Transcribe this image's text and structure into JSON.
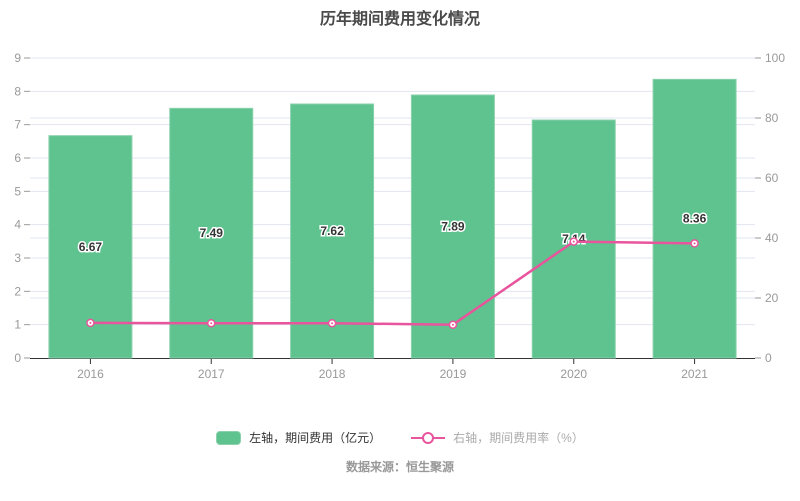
{
  "title": "历年期间费用变化情况",
  "source": "数据来源：恒生聚源",
  "legend": [
    {
      "label": "左轴，期间费用（亿元）",
      "marker": "bar-swatch-icon",
      "state": "active"
    },
    {
      "label": "右轴，期间费用率（%）",
      "marker": "line-ring-icon",
      "state": "muted"
    }
  ],
  "colors": {
    "bar_fill": "#5ec38f",
    "bar_border": "#8ad1ac",
    "line": "#e8559d",
    "grid": "#e2e6f3",
    "axis_line": "#333333",
    "tick": "#999999",
    "axis_label": "#999999",
    "title_text": "#4a4a4a",
    "bar_label_fill": "#333333",
    "bar_label_halo": "#ffffff",
    "marker_fill": "#ffffff"
  },
  "chart_data": {
    "type": "bar",
    "subtype": "bar+line combo, dual axis",
    "title": "历年期间费用变化情况",
    "categories": [
      "2016",
      "2017",
      "2018",
      "2019",
      "2020",
      "2021"
    ],
    "series": [
      {
        "name": "左轴，期间费用（亿元）",
        "type": "bar",
        "axis": "left",
        "values": [
          6.67,
          7.49,
          7.62,
          7.89,
          7.14,
          8.36
        ],
        "data_labels": [
          "6.67",
          "7.49",
          "7.62",
          "7.89",
          "7.14",
          "8.36"
        ],
        "labels_visible": true
      },
      {
        "name": "右轴，期间费用率（%）",
        "type": "line",
        "axis": "right",
        "values": [
          11.7,
          11.6,
          11.6,
          11.1,
          38.8,
          38.2
        ],
        "labels_visible": false
      }
    ],
    "left_axis": {
      "min": 0,
      "max": 9,
      "ticks": [
        0,
        1,
        2,
        3,
        4,
        5,
        6,
        7,
        8,
        9
      ]
    },
    "right_axis": {
      "min": 0,
      "max": 100,
      "ticks": [
        0,
        20,
        40,
        60,
        80,
        100
      ]
    },
    "grid": true,
    "legend_position": "bottom",
    "xlabel": "",
    "ylabel_left": "亿元",
    "ylabel_right": "%"
  }
}
